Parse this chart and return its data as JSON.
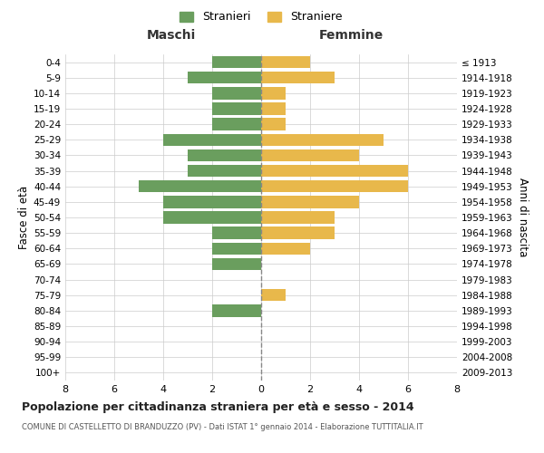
{
  "age_groups": [
    "0-4",
    "5-9",
    "10-14",
    "15-19",
    "20-24",
    "25-29",
    "30-34",
    "35-39",
    "40-44",
    "45-49",
    "50-54",
    "55-59",
    "60-64",
    "65-69",
    "70-74",
    "75-79",
    "80-84",
    "85-89",
    "90-94",
    "95-99",
    "100+"
  ],
  "birth_years": [
    "2009-2013",
    "2004-2008",
    "1999-2003",
    "1994-1998",
    "1989-1993",
    "1984-1988",
    "1979-1983",
    "1974-1978",
    "1969-1973",
    "1964-1968",
    "1959-1963",
    "1954-1958",
    "1949-1953",
    "1944-1948",
    "1939-1943",
    "1934-1938",
    "1929-1933",
    "1924-1928",
    "1919-1923",
    "1914-1918",
    "≤ 1913"
  ],
  "maschi": [
    2,
    3,
    2,
    2,
    2,
    4,
    3,
    3,
    5,
    4,
    4,
    2,
    2,
    2,
    0,
    0,
    2,
    0,
    0,
    0,
    0
  ],
  "femmine": [
    2,
    3,
    1,
    1,
    1,
    5,
    4,
    6,
    6,
    4,
    3,
    3,
    2,
    0,
    0,
    1,
    0,
    0,
    0,
    0,
    0
  ],
  "male_color": "#6a9e5e",
  "female_color": "#e8b84b",
  "title": "Popolazione per cittadinanza straniera per età e sesso - 2014",
  "subtitle": "COMUNE DI CASTELLETTO DI BRANDUZZO (PV) - Dati ISTAT 1° gennaio 2014 - Elaborazione TUTTITALIA.IT",
  "legend_male": "Stranieri",
  "legend_female": "Straniere",
  "header_left": "Maschi",
  "header_right": "Femmine",
  "ylabel_left": "Fasce di età",
  "ylabel_right": "Anni di nascita",
  "xlim": 8,
  "background_color": "#ffffff",
  "grid_color": "#cccccc"
}
